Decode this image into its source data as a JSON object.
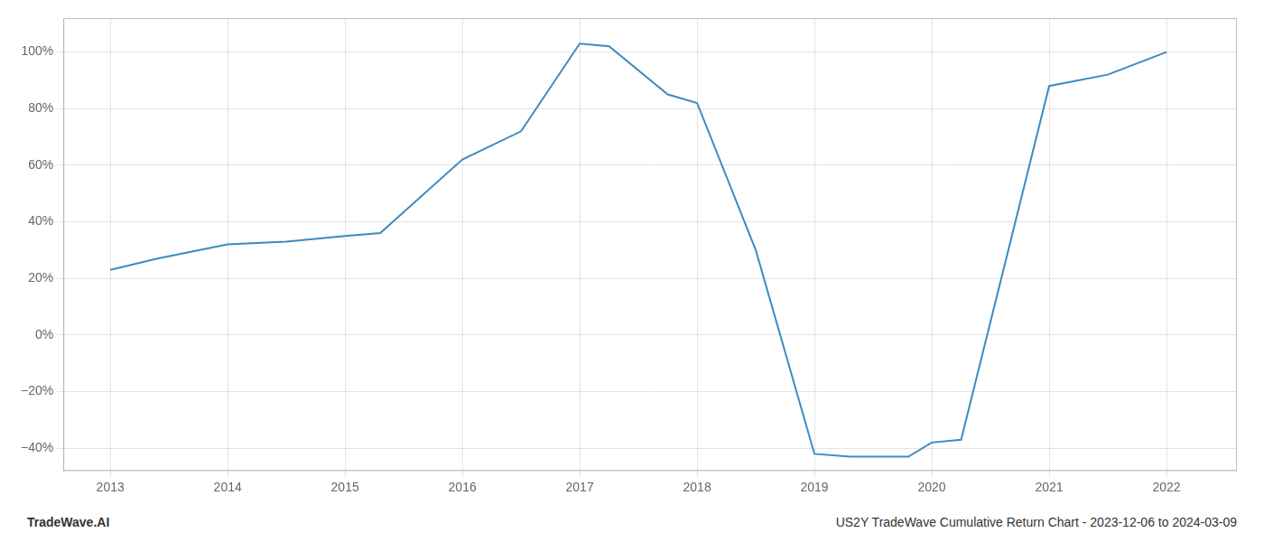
{
  "chart_data": {
    "type": "line",
    "x": [
      2013,
      2013.4,
      2014,
      2014.5,
      2015,
      2015.3,
      2016,
      2016.5,
      2017,
      2017.25,
      2017.75,
      2018,
      2018.5,
      2019,
      2019.3,
      2019.8,
      2020,
      2020.25,
      2021,
      2021.5,
      2022
    ],
    "values": [
      23,
      27,
      32,
      33,
      35,
      36,
      62,
      72,
      103,
      102,
      85,
      82,
      30,
      -42,
      -43,
      -43,
      -38,
      -37,
      88,
      92,
      100
    ],
    "color": "#3d8bbf",
    "xlim": [
      2012.6,
      2022.6
    ],
    "xticks": [
      2013,
      2014,
      2015,
      2016,
      2017,
      2018,
      2019,
      2020,
      2021,
      2022
    ],
    "ylim": [
      -48,
      112
    ],
    "yticks": [
      {
        "value": -40,
        "label": "−40%"
      },
      {
        "value": -20,
        "label": "−20%"
      },
      {
        "value": 0,
        "label": "0%"
      },
      {
        "value": 20,
        "label": "20%"
      },
      {
        "value": 40,
        "label": "40%"
      },
      {
        "value": 60,
        "label": "60%"
      },
      {
        "value": 80,
        "label": "80%"
      },
      {
        "value": 100,
        "label": "100%"
      }
    ],
    "grid": true,
    "annotations": [
      "TradeWave.AI",
      "US2Y TradeWave Cumulative Return Chart - 2023-12-06 to 2024-03-09"
    ]
  }
}
